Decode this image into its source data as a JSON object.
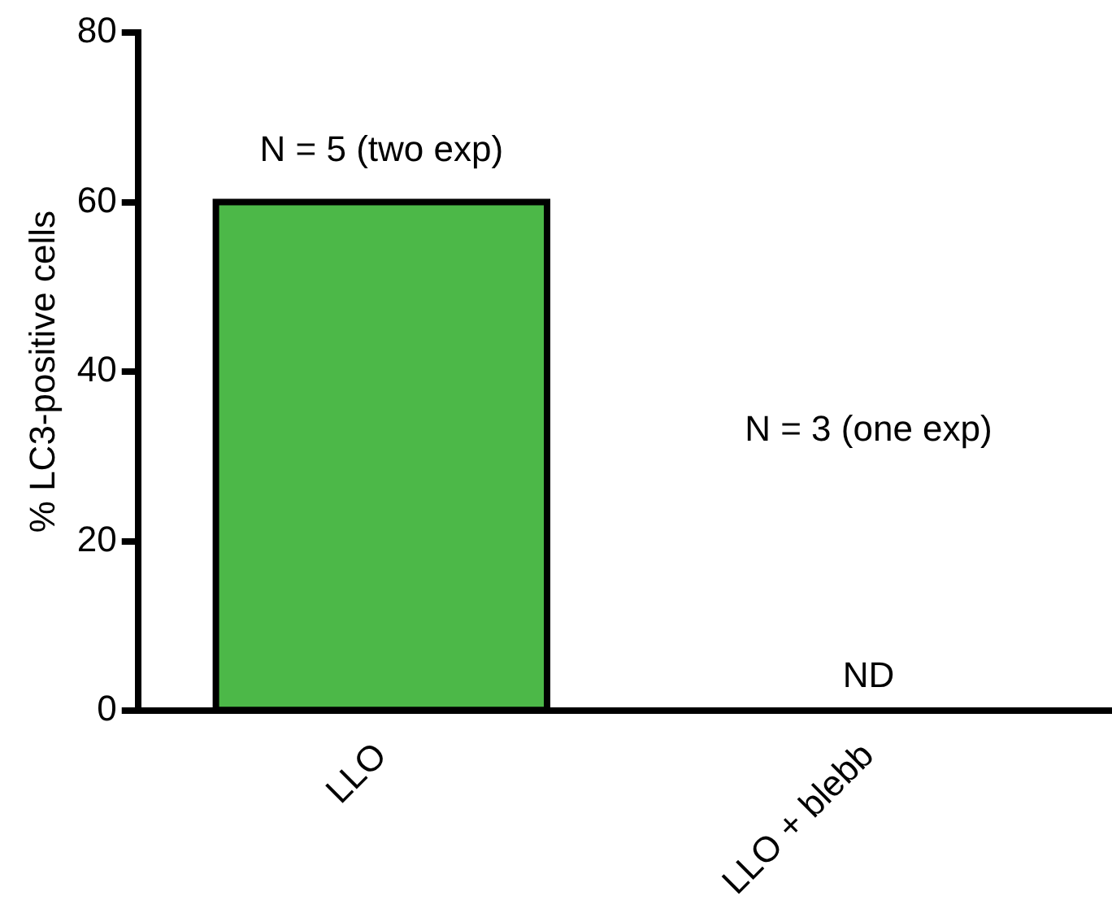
{
  "chart_data": {
    "type": "bar",
    "ylabel": "% LC3-positive cells",
    "categories": [
      "LLO",
      "LLO + blebb"
    ],
    "values": [
      60,
      null
    ],
    "color": "#4cb848",
    "ylim": [
      0,
      80
    ],
    "yticks": [
      0,
      20,
      40,
      60,
      80
    ],
    "grid": false,
    "legend": false,
    "annotations": [
      "N = 5 (two exp)",
      "N = 3 (one exp)",
      "ND"
    ]
  }
}
